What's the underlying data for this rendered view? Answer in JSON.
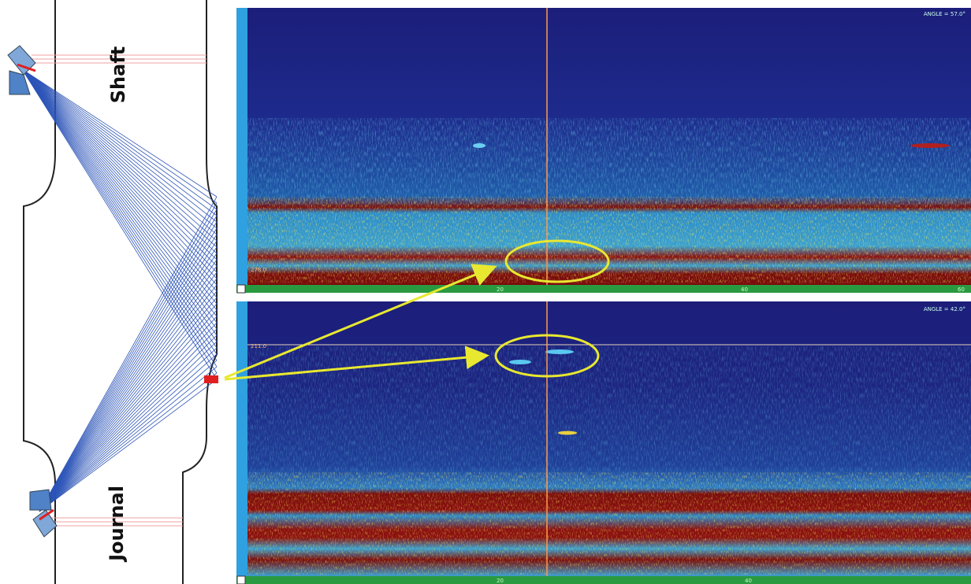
{
  "diagram": {
    "labels": {
      "shaft": "Shaft",
      "journal": "Journal"
    },
    "scans": [
      {
        "angle": "ANGLE = 57.0°",
        "gate": "278.0",
        "ticks": [
          "20",
          "40",
          "60"
        ]
      },
      {
        "angle": "ANGLE = 42.0°",
        "gate": "211.0",
        "ticks": [
          "20",
          "40"
        ]
      }
    ]
  }
}
